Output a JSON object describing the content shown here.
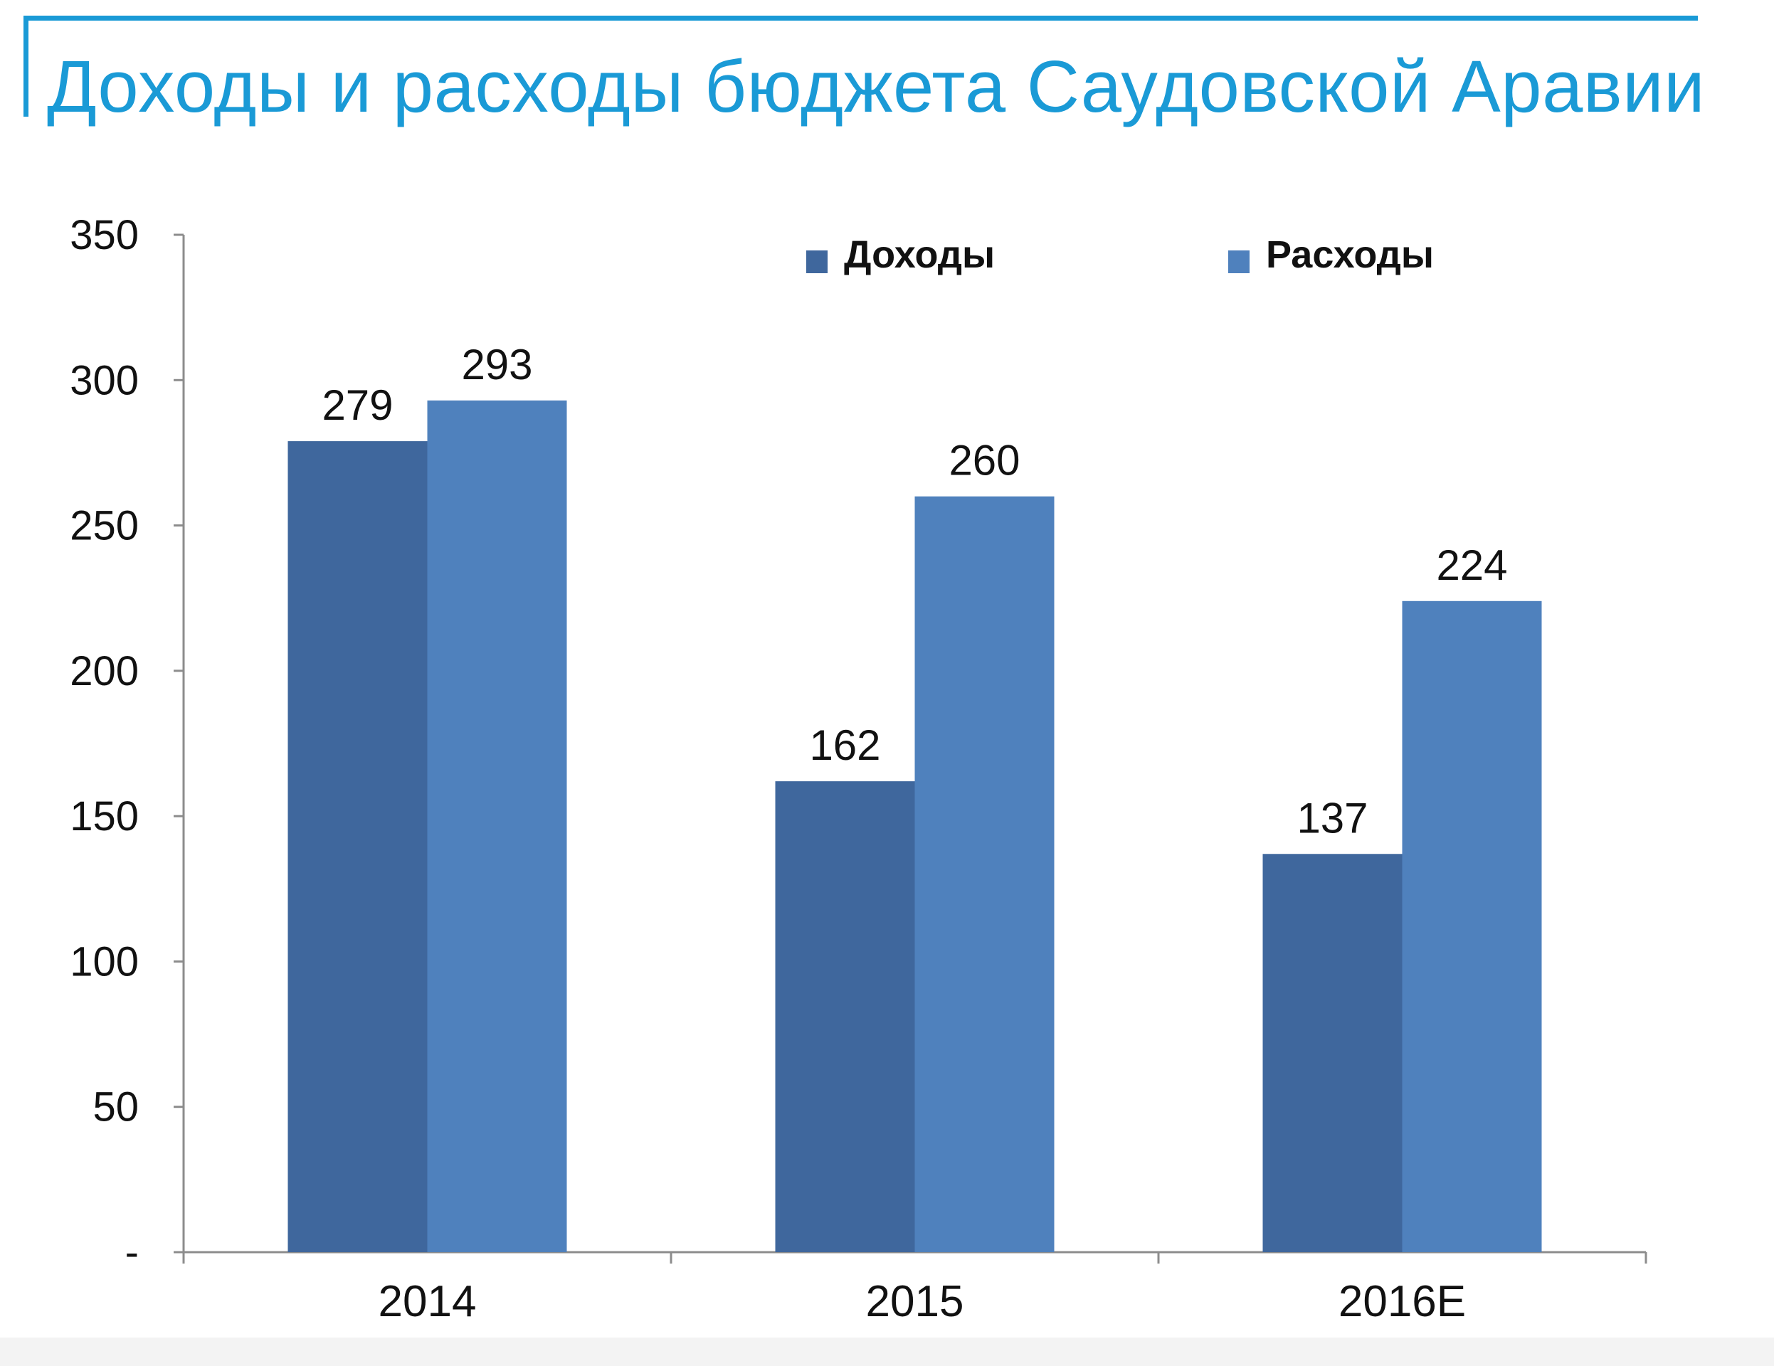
{
  "page": {
    "title": "Доходы и расходы бюджета Саудовской Аравии",
    "accent_color": "#1a9ad6"
  },
  "chart_data": {
    "type": "bar",
    "categories": [
      "2014",
      "2015",
      "2016E"
    ],
    "series": [
      {
        "name": "Доходы",
        "values": [
          279,
          162,
          137
        ],
        "color": "#3f679d"
      },
      {
        "name": "Расходы",
        "values": [
          293,
          260,
          224
        ],
        "color": "#4f81bd"
      }
    ],
    "ylim": [
      0,
      350
    ],
    "yticks": [
      0,
      50,
      100,
      150,
      200,
      250,
      300,
      350
    ],
    "ytick_labels": [
      "-",
      "50",
      "100",
      "150",
      "200",
      "250",
      "300",
      "350"
    ],
    "data_labels": true,
    "legend_position": "top-right",
    "grid": false,
    "title": "Доходы и расходы бюджета Саудовской Аравии",
    "xlabel": "",
    "ylabel": ""
  }
}
